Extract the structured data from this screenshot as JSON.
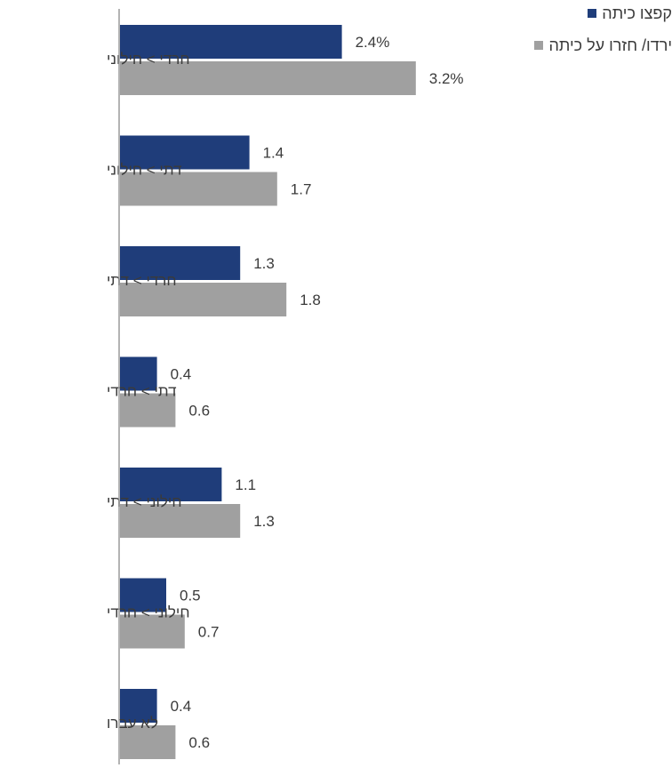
{
  "chart_data": {
    "type": "bar",
    "orientation": "horizontal",
    "categories": [
      "חרדי > חילוני",
      "דתי > חילוני",
      "חרדי > דתי",
      "דתי > חרדי",
      "חילוני > דתי",
      "חילוני > חרדי",
      "לא עברו"
    ],
    "series": [
      {
        "name": "קפצו כיתה",
        "color": "#1f3d7a",
        "values": [
          2.4,
          1.4,
          1.3,
          0.4,
          1.1,
          0.5,
          0.4
        ],
        "labels": [
          "2.4%",
          "1.4",
          "1.3",
          "0.4",
          "1.1",
          "0.5",
          "0.4"
        ]
      },
      {
        "name": "ירדו/ חזרו על כיתה",
        "color": "#a0a0a0",
        "values": [
          3.2,
          1.7,
          1.8,
          0.6,
          1.3,
          0.7,
          0.6
        ],
        "labels": [
          "3.2%",
          "1.7",
          "1.8",
          "0.6",
          "1.3",
          "0.7",
          "0.6"
        ]
      }
    ],
    "xlim": [
      0,
      3.2
    ],
    "grid": false,
    "legend_position": "top-right"
  }
}
